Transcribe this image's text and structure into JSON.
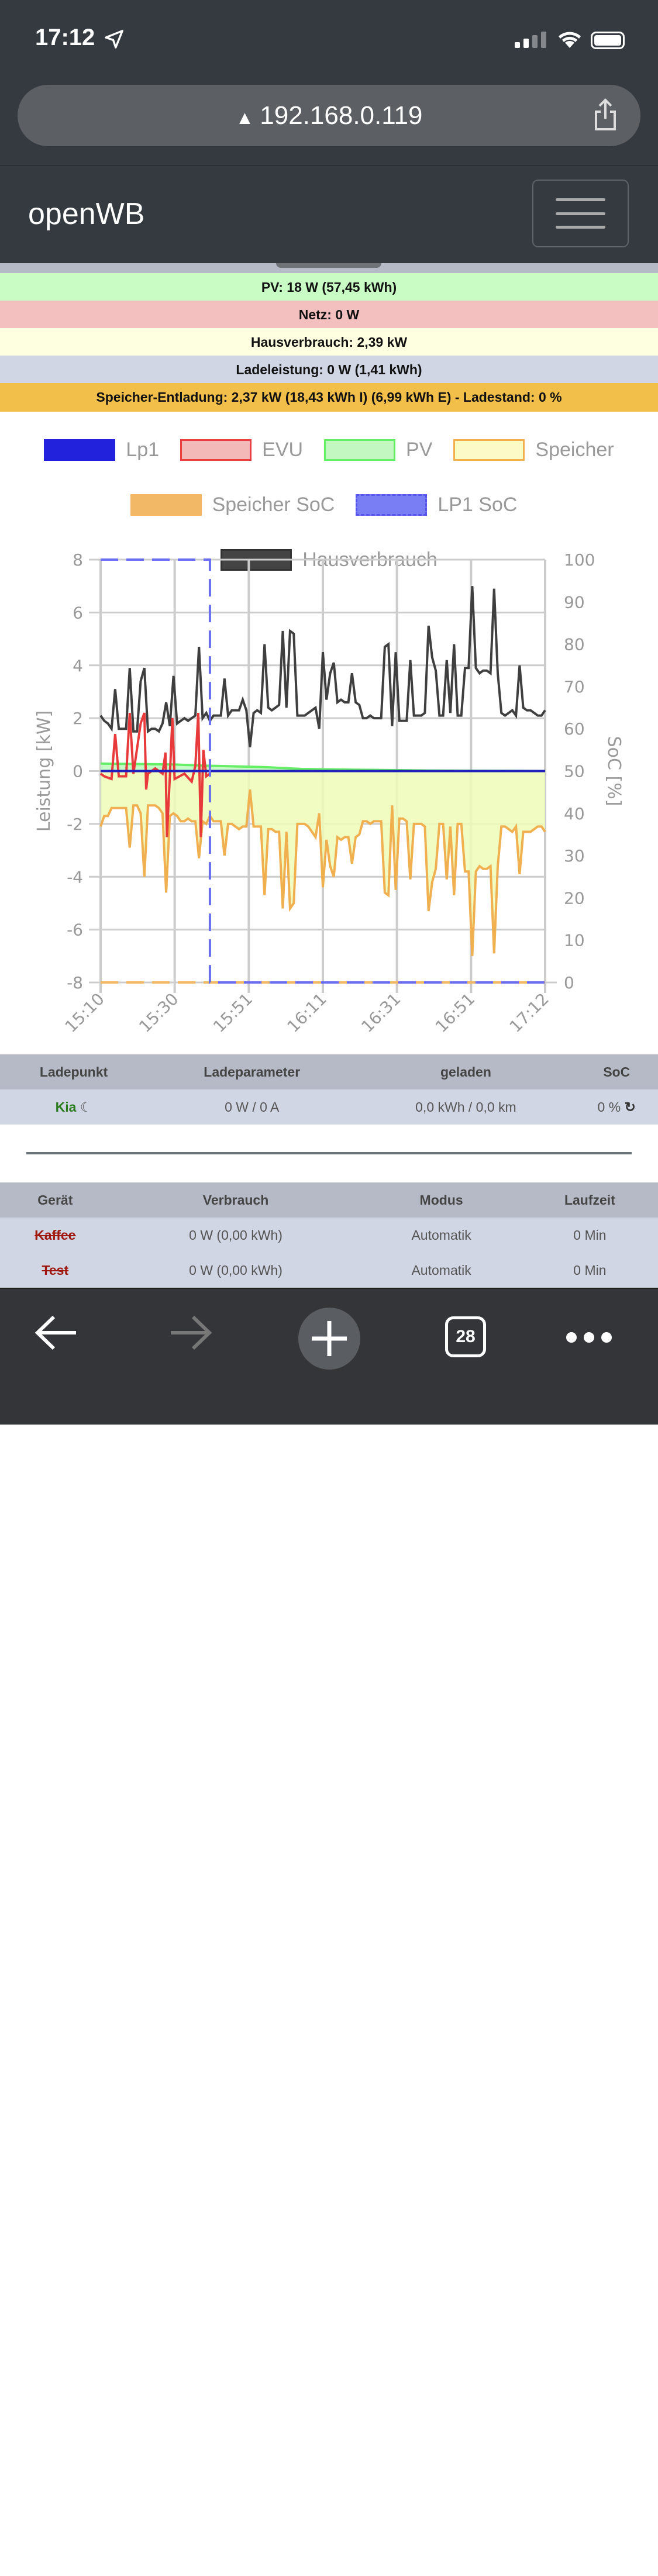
{
  "statusbar": {
    "time": "17:12"
  },
  "browser": {
    "url": "192.168.0.119",
    "tab_count": "28"
  },
  "navbar": {
    "brand": "openWB"
  },
  "status_bars": {
    "pv": "PV: 18 W (57,45 kWh)",
    "netz": "Netz: 0 W",
    "haus": "Hausverbrauch: 2,39 kW",
    "lade": "Ladeleistung: 0 W (1,41 kWh)",
    "speicher": "Speicher-Entladung: 2,37 kW (18,43 kWh I) (6,99 kWh E) - Ladestand: 0 %"
  },
  "colors": {
    "pv_bg": "#c9fcc4",
    "netz_bg": "#f3bfbf",
    "haus_bg": "#fefee0",
    "lade_bg": "#d0d6e4",
    "speicher_bg": "#f2bf4a"
  },
  "chart_data": {
    "type": "line",
    "xlabel": "",
    "ylabel": "Leistung [kW]",
    "y2label": "SoC [%]",
    "ylim": [
      -8,
      8
    ],
    "y2lim": [
      0,
      100
    ],
    "yticks": [
      "8",
      "6",
      "4",
      "2",
      "0",
      "-2",
      "-4",
      "-6",
      "-8"
    ],
    "y2ticks": [
      "100",
      "90",
      "80",
      "70",
      "60",
      "50",
      "40",
      "30",
      "20",
      "10",
      "0"
    ],
    "x_unit": "minutes since 15:10",
    "xlim": [
      0,
      122
    ],
    "xticks": [
      {
        "m": 0,
        "label": "15:10"
      },
      {
        "m": 20.33,
        "label": "15:30"
      },
      {
        "m": 40.67,
        "label": "15:51"
      },
      {
        "m": 61,
        "label": "16:11"
      },
      {
        "m": 81.33,
        "label": "16:31"
      },
      {
        "m": 101.67,
        "label": "16:51"
      },
      {
        "m": 122,
        "label": "17:12"
      }
    ],
    "grid": true,
    "legend": {
      "placement": "top",
      "items": [
        {
          "label": "Lp1",
          "fill": "#2222dd",
          "border": "#2222dd",
          "dashed": false
        },
        {
          "label": "EVU",
          "fill": "#f3b8b8",
          "border": "#e84040",
          "dashed": false
        },
        {
          "label": "PV",
          "fill": "#c2f7c2",
          "border": "#66ee66",
          "dashed": false
        },
        {
          "label": "Speicher",
          "fill": "#fcfbc8",
          "border": "#f0b050",
          "dashed": false
        },
        {
          "label": "Speicher SoC",
          "fill": "#f2b866",
          "border": "#f2b866",
          "dashed": true
        },
        {
          "label": "LP1 SoC",
          "fill": "#7a7ef5",
          "border": "#5555ee",
          "dashed": true
        },
        {
          "label": "Hausverbrauch",
          "fill": "#444444",
          "border": "#333333",
          "dashed": false
        }
      ]
    },
    "series": {
      "hausverbrauch": {
        "color": "#3f3f3f",
        "values": [
          2.1,
          1.9,
          1.8,
          1.6,
          3.1,
          1.6,
          1.6,
          1.6,
          3.9,
          1.5,
          1.5,
          3.4,
          3.9,
          1.5,
          1.6,
          1.6,
          1.5,
          1.8,
          2.6,
          1.7,
          3.6,
          1.8,
          1.9,
          2.0,
          1.9,
          2.0,
          2.1,
          4.7,
          2.0,
          2.2,
          1.9,
          2.1,
          2.1,
          2.1,
          3.5,
          2.1,
          2.3,
          2.3,
          2.3,
          2.7,
          2.3,
          0.9,
          2.2,
          2.3,
          2.2,
          4.8,
          2.4,
          2.3,
          2.4,
          2.5,
          5.3,
          2.4,
          5.3,
          5.2,
          2.1,
          2.1,
          2.1,
          2.2,
          2.3,
          2.4,
          1.6,
          4.5,
          2.7,
          3.7,
          4.1,
          2.6,
          2.7,
          2.6,
          2.6,
          3.7,
          2.6,
          2.5,
          2.0,
          2.0,
          2.1,
          2.0,
          2.0,
          2.0,
          4.7,
          4.8,
          1.7,
          4.5,
          1.9,
          1.9,
          1.9,
          4.2,
          2.1,
          2.1,
          2.1,
          2.2,
          5.5,
          4.3,
          3.8,
          2.1,
          2.1,
          4.2,
          2.2,
          4.8,
          2.1,
          2.1,
          3.9,
          3.9,
          7.0,
          3.9,
          3.7,
          3.8,
          3.8,
          3.7,
          6.9,
          3.7,
          2.2,
          2.1,
          2.2,
          2.3,
          2.1,
          4.0,
          2.4,
          2.3,
          2.3,
          2.2,
          2.1,
          2.1,
          2.3
        ]
      },
      "speicher": {
        "color": "#f0b050",
        "fill": "#eefcb8",
        "values": [
          -2.1,
          -1.7,
          -1.7,
          -1.4,
          -1.4,
          -1.4,
          -1.4,
          -1.4,
          -2.9,
          -1.3,
          -1.3,
          -1.6,
          -4.0,
          -1.3,
          -1.3,
          -1.3,
          -1.4,
          -1.6,
          -4.6,
          -1.7,
          -1.6,
          -1.7,
          -1.9,
          -1.9,
          -1.8,
          -1.9,
          -1.9,
          -3.3,
          -1.9,
          -2.0,
          -1.7,
          -1.9,
          -1.9,
          -1.9,
          -3.2,
          -2.0,
          -2.0,
          -2.1,
          -2.2,
          -2.1,
          -2.1,
          -0.7,
          -2.1,
          -2.1,
          -2.1,
          -4.7,
          -2.2,
          -2.2,
          -2.3,
          -2.3,
          -5.2,
          -2.3,
          -5.2,
          -5.0,
          -2.0,
          -2.0,
          -2.0,
          -2.1,
          -2.3,
          -2.5,
          -1.6,
          -4.4,
          -2.6,
          -3.6,
          -4.0,
          -2.5,
          -2.6,
          -2.5,
          -2.5,
          -3.5,
          -2.5,
          -2.4,
          -1.9,
          -1.9,
          -2.0,
          -1.9,
          -1.9,
          -1.9,
          -4.6,
          -4.7,
          -1.3,
          -4.5,
          -1.8,
          -1.8,
          -1.9,
          -4.1,
          -2.0,
          -2.0,
          -2.0,
          -2.1,
          -5.3,
          -4.2,
          -3.7,
          -2.0,
          -2.0,
          -4.1,
          -2.1,
          -4.7,
          -2.0,
          -2.0,
          -3.8,
          -3.8,
          -7.0,
          -3.8,
          -3.6,
          -3.7,
          -3.7,
          -3.6,
          -6.9,
          -3.6,
          -2.1,
          -2.1,
          -2.2,
          -2.3,
          -2.1,
          -3.9,
          -2.3,
          -2.3,
          -2.3,
          -2.2,
          -2.1,
          -2.1,
          -2.3
        ]
      },
      "pv": {
        "color": "#66ee66",
        "fill": "#c6fbc6",
        "points": [
          [
            0,
            0.28
          ],
          [
            20,
            0.25
          ],
          [
            30,
            0.2
          ],
          [
            45,
            0.15
          ],
          [
            55,
            0.08
          ],
          [
            70,
            0.05
          ],
          [
            90,
            0.02
          ],
          [
            122,
            0.0
          ]
        ]
      },
      "evu": {
        "color": "#e83a3a",
        "points": [
          [
            0,
            -0.1
          ],
          [
            1,
            -0.2
          ],
          [
            3,
            -0.3
          ],
          [
            4,
            1.4
          ],
          [
            5,
            -0.2
          ],
          [
            7,
            -0.2
          ],
          [
            8,
            2.2
          ],
          [
            9,
            -0.1
          ],
          [
            11,
            1.8
          ],
          [
            12,
            2.2
          ],
          [
            12.5,
            -0.7
          ],
          [
            13,
            -0.1
          ],
          [
            15,
            0.1
          ],
          [
            17,
            -0.1
          ],
          [
            17.8,
            0.7
          ],
          [
            18.2,
            -2.5
          ],
          [
            19,
            -0.2
          ],
          [
            19.7,
            2.0
          ],
          [
            20.3,
            -0.3
          ],
          [
            23,
            -0.1
          ],
          [
            25,
            -0.4
          ],
          [
            26,
            0.2
          ],
          [
            26.8,
            2.2
          ],
          [
            27.5,
            -2.5
          ],
          [
            28.2,
            0.8
          ],
          [
            29,
            -0.2
          ],
          [
            30,
            -0.1
          ]
        ]
      },
      "lp1": {
        "color": "#2222bb",
        "points": [
          [
            0,
            0
          ],
          [
            122,
            0
          ]
        ]
      },
      "lp1_soc": {
        "color": "#6a6ef0",
        "points": [
          [
            0,
            100
          ],
          [
            30,
            100
          ],
          [
            30,
            0
          ],
          [
            122,
            0
          ]
        ]
      },
      "speicher_soc": {
        "color": "#f2b866",
        "points": [
          [
            0,
            0
          ],
          [
            122,
            0
          ]
        ]
      }
    }
  },
  "ladepunkt_table": {
    "headers": [
      "Ladepunkt",
      "Ladeparameter",
      "geladen",
      "SoC"
    ],
    "rows": [
      {
        "name": "Kia",
        "params": "0 W / 0 A",
        "geladen": "0,0 kWh / 0,0 km",
        "soc": "0 %"
      }
    ]
  },
  "geraete_table": {
    "headers": [
      "Gerät",
      "Verbrauch",
      "Modus",
      "Laufzeit"
    ],
    "rows": [
      {
        "name": "Kaffee",
        "verbrauch": "0 W (0,00 kWh)",
        "modus": "Automatik",
        "laufzeit": "0 Min"
      },
      {
        "name": "Test",
        "verbrauch": "0 W (0,00 kWh)",
        "modus": "Automatik",
        "laufzeit": "0 Min"
      }
    ]
  }
}
